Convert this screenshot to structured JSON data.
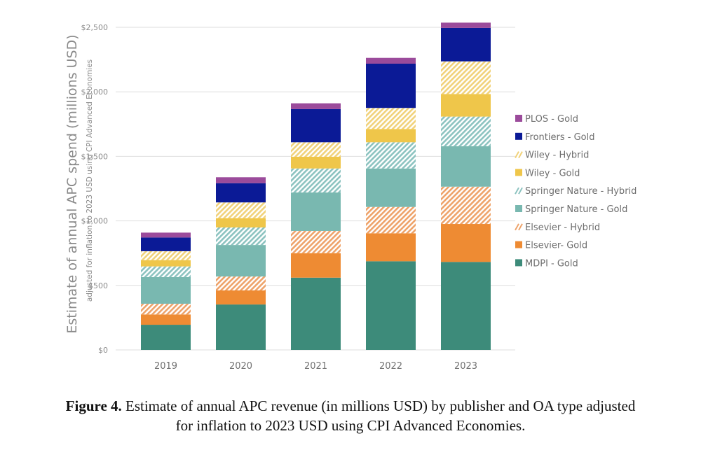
{
  "chart_data": {
    "type": "bar",
    "stacked": true,
    "title": "",
    "xlabel": "",
    "ylabel": "Estimate of annual APC spend (millions USD)",
    "ylabel_sub": "adjusted for inflation to 2023 USD using CPI Advanced Economies",
    "ylim": [
      0,
      2500
    ],
    "yticks": [
      0,
      500,
      1000,
      1500,
      2000,
      2500
    ],
    "ytick_labels": [
      "$0",
      "$500",
      "$1,000",
      "$1,500",
      "$2,000",
      "$2,500"
    ],
    "grid": true,
    "legend_position": "right",
    "categories": [
      "2019",
      "2020",
      "2021",
      "2022",
      "2023"
    ],
    "series": [
      {
        "name": "MDPI - Gold",
        "color": "#3d8b7a",
        "pattern": "solid",
        "values": [
          195,
          352,
          560,
          687,
          682
        ]
      },
      {
        "name": "Elsevier- Gold",
        "color": "#ee8b33",
        "pattern": "solid",
        "values": [
          80,
          109,
          190,
          217,
          294
        ]
      },
      {
        "name": "Elsevier - Hybrid",
        "color": "#eea36a",
        "pattern": "hatch",
        "values": [
          83,
          108,
          172,
          204,
          289
        ]
      },
      {
        "name": "Springer Nature - Gold",
        "color": "#79b8b0",
        "pattern": "solid",
        "values": [
          206,
          244,
          298,
          298,
          313
        ]
      },
      {
        "name": "Springer Nature - Hybrid",
        "color": "#8cc3c0",
        "pattern": "hatch",
        "values": [
          83,
          136,
          186,
          203,
          230
        ]
      },
      {
        "name": "Wiley - Gold",
        "color": "#efc64a",
        "pattern": "solid",
        "values": [
          49,
          72,
          91,
          103,
          175
        ]
      },
      {
        "name": "Wiley - Hybrid",
        "color": "#f1d27a",
        "pattern": "hatch",
        "values": [
          69,
          122,
          112,
          163,
          253
        ]
      },
      {
        "name": "Frontiers - Gold",
        "color": "#0b1a96",
        "pattern": "solid",
        "values": [
          106,
          149,
          257,
          343,
          259
        ]
      },
      {
        "name": "PLOS - Gold",
        "color": "#9b4b9b",
        "pattern": "solid",
        "values": [
          38,
          46,
          45,
          45,
          41
        ]
      }
    ],
    "legend_order": [
      "PLOS - Gold",
      "Frontiers - Gold",
      "Wiley - Hybrid",
      "Wiley - Gold",
      "Springer Nature - Hybrid",
      "Springer Nature - Gold",
      "Elsevier - Hybrid",
      "Elsevier- Gold",
      "MDPI - Gold"
    ]
  },
  "caption": {
    "label": "Figure 4.",
    "line1": " Estimate of annual APC revenue (in millions USD) by publisher and OA type adjusted",
    "line2": "for inflation to 2023 USD using CPI Advanced Economies."
  }
}
